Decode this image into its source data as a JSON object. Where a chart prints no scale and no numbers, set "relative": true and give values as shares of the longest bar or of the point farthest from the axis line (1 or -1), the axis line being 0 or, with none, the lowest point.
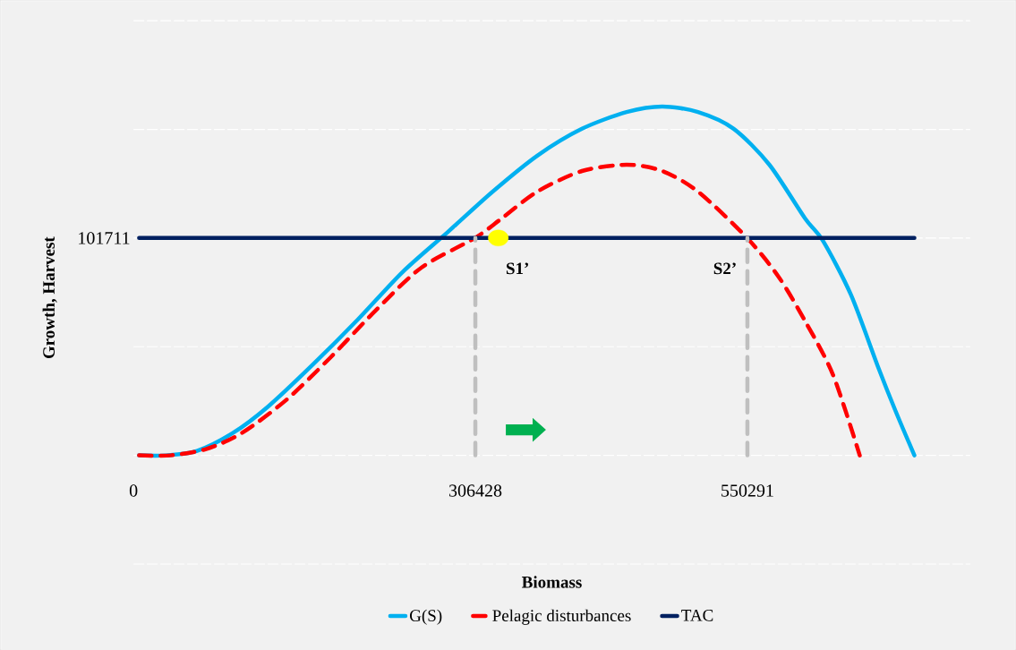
{
  "chart_data": {
    "type": "line",
    "relative": true,
    "xlabel": "Biomass",
    "ylabel": "Growth, Harvest",
    "xlim": [
      0,
      750000
    ],
    "xticks": [
      0,
      306428,
      550291
    ],
    "tick_labels": "x",
    "grid": "y",
    "legend": "bottom",
    "marker": "none",
    "series": [
      {
        "name": "G(S)",
        "color": "#00b0f0",
        "line_style": "solid",
        "x": [
          5000,
          29000,
          57000,
          89000,
          121000,
          161000,
          201000,
          241000,
          282000,
          322000,
          362000,
          402000,
          442000,
          474000,
          506000,
          538000,
          570000,
          602000,
          618000,
          643000,
          667000,
          683000,
          700000
        ],
        "values": [
          0,
          0,
          0.013,
          0.064,
          0.141,
          0.261,
          0.389,
          0.525,
          0.641,
          0.756,
          0.859,
          0.936,
          0.984,
          1,
          0.984,
          0.936,
          0.833,
          0.679,
          0.615,
          0.461,
          0.257,
          0.128,
          0
        ]
      },
      {
        "name": "Pelagic disturbances",
        "color": "#ff0000",
        "line_style": "dashed",
        "x": [
          5000,
          33000,
          65000,
          97000,
          137000,
          177000,
          217000,
          258000,
          306000,
          330000,
          362000,
          402000,
          442000,
          474000,
          506000,
          550000,
          578000,
          602000,
          627000,
          651000
        ],
        "values": [
          0,
          0,
          0.018,
          0.064,
          0.159,
          0.282,
          0.415,
          0.538,
          0.623,
          0.679,
          0.756,
          0.815,
          0.833,
          0.815,
          0.756,
          0.623,
          0.513,
          0.385,
          0.231,
          0
        ]
      },
      {
        "name": "TAC",
        "color": "#002060",
        "line_style": "solid",
        "x": [
          5000,
          700000
        ],
        "values": [
          0.623,
          0.623
        ]
      },
      {
        "color": "#bfbfbf",
        "line_style": "dashed",
        "x": [
          306428,
          306428
        ],
        "values": [
          0,
          0.623
        ]
      },
      {
        "color": "#bfbfbf",
        "line_style": "dashed",
        "x": [
          550291,
          550291
        ],
        "values": [
          0,
          0.623
        ]
      },
      {
        "type": "scatter",
        "color": "#ffff00",
        "x": [
          327000
        ],
        "values": [
          0.623
        ]
      }
    ],
    "annotations": [
      "101711",
      "S1’",
      "S2’"
    ]
  }
}
